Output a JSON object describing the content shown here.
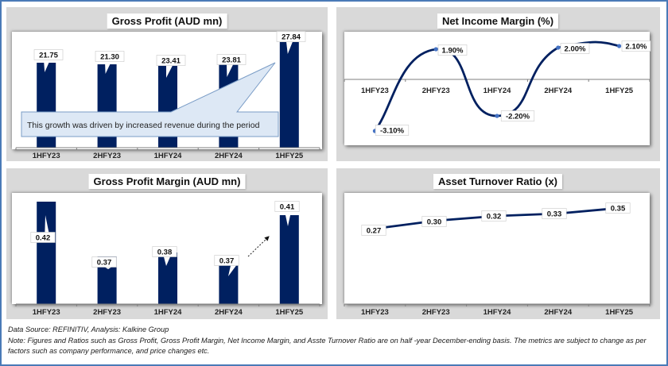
{
  "charts": {
    "gross_profit": {
      "title": "Gross Profit (AUD mn)"
    },
    "net_income_margin": {
      "title": "Net Income Margin (%)"
    },
    "gross_profit_margin": {
      "title": "Gross Profit Margin (AUD mn)"
    },
    "asset_turnover": {
      "title": "Asset Turnover Ratio (x)"
    }
  },
  "annotation": {
    "text": "This growth was driven by increased revenue during the period"
  },
  "footer": {
    "source": "Data Source: REFINITIV, Analysis: Kalkine Group",
    "note": "Note: Figures and Ratios such as Gross Profit, Gross Profit Margin, Net Income Margin, and Asste Turnover Ratio are on half -year December-ending basis. The metrics are subject to change as per factors such as company performance, and price changes etc."
  },
  "colors": {
    "bar": "#002060",
    "line": "#002060",
    "marker": "#4472c4",
    "panel": "#d9d9d9",
    "frame": "#4a7ab7",
    "callout_fill": "#dde8f5",
    "callout_border": "#7a9cc6"
  },
  "chart_data": [
    {
      "id": "gross_profit",
      "type": "bar",
      "title": "Gross Profit (AUD mn)",
      "categories": [
        "1HFY23",
        "2HFY23",
        "1HFY24",
        "2HFY24",
        "1HFY25"
      ],
      "values": [
        21.75,
        21.3,
        23.41,
        23.81,
        27.84
      ],
      "value_labels": [
        "21.75",
        "21.30",
        "23.41",
        "23.81",
        "27.84"
      ],
      "ylim": [
        0,
        30
      ],
      "annotation": "This growth was driven by increased revenue during the period",
      "grid": false
    },
    {
      "id": "net_income_margin",
      "type": "line",
      "title": "Net Income Margin (%)",
      "categories": [
        "1HFY23",
        "2HFY23",
        "1HFY24",
        "2HFY24",
        "1HFY25"
      ],
      "values": [
        -3.1,
        1.9,
        -2.2,
        2.0,
        2.1
      ],
      "value_labels": [
        "-3.10%",
        "1.90%",
        "-2.20%",
        "2.00%",
        "2.10%"
      ],
      "ylim": [
        -3.6,
        2.5
      ],
      "smooth": true,
      "grid": false
    },
    {
      "id": "gross_profit_margin",
      "type": "bar",
      "title": "Gross Profit Margin (AUD mn)",
      "categories": [
        "1HFY23",
        "2HFY23",
        "1HFY24",
        "2HFY24",
        "1HFY25"
      ],
      "values": [
        0.42,
        0.37,
        0.38,
        0.37,
        0.41
      ],
      "value_labels": [
        "0.42",
        "0.37",
        "0.38",
        "0.37",
        "0.41"
      ],
      "ylim": [
        0.3,
        0.425
      ],
      "grid": false
    },
    {
      "id": "asset_turnover",
      "type": "line",
      "title": "Asset Turnover Ratio (x)",
      "categories": [
        "1HFY23",
        "2HFY23",
        "1HFY24",
        "2HFY24",
        "1HFY25"
      ],
      "values": [
        0.27,
        0.3,
        0.32,
        0.33,
        0.35
      ],
      "value_labels": [
        "0.27",
        "0.30",
        "0.32",
        "0.33",
        "0.35"
      ],
      "ylim": [
        0,
        0.42
      ],
      "grid": false
    }
  ]
}
